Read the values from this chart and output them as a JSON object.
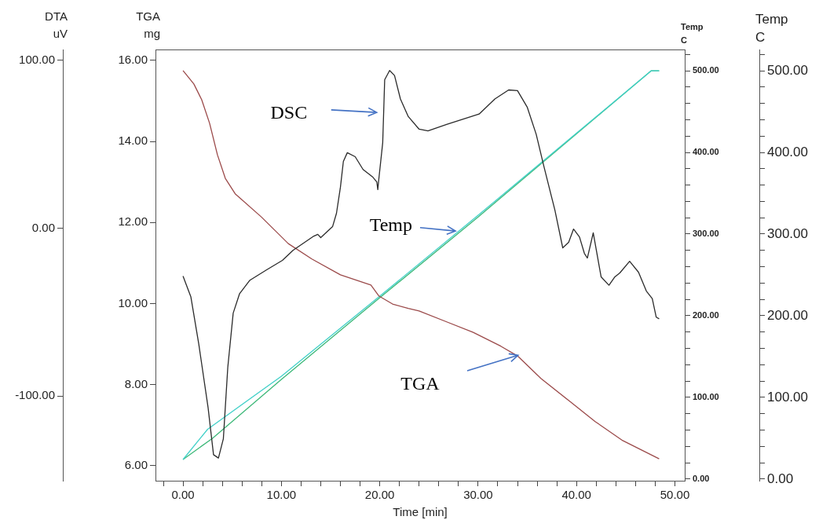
{
  "chart_data": {
    "type": "line",
    "xlabel": "Time [min]",
    "ylabel": "TGA mg",
    "y2label": "Temp C",
    "y3label": "DTA uV",
    "xlim": [
      -2.8,
      51
    ],
    "xticks": [
      {
        "value": -2,
        "label": null
      },
      {
        "value": 0,
        "label": "0.00"
      },
      {
        "value": 2,
        "label": null
      },
      {
        "value": 4,
        "label": null
      },
      {
        "value": 6,
        "label": null
      },
      {
        "value": 8,
        "label": null
      },
      {
        "value": 10,
        "label": "10.00"
      },
      {
        "value": 12,
        "label": null
      },
      {
        "value": 14,
        "label": null
      },
      {
        "value": 16,
        "label": null
      },
      {
        "value": 18,
        "label": null
      },
      {
        "value": 20,
        "label": "20.00"
      },
      {
        "value": 22,
        "label": null
      },
      {
        "value": 24,
        "label": null
      },
      {
        "value": 26,
        "label": null
      },
      {
        "value": 28,
        "label": null
      },
      {
        "value": 30,
        "label": "30.00"
      },
      {
        "value": 32,
        "label": null
      },
      {
        "value": 34,
        "label": null
      },
      {
        "value": 36,
        "label": null
      },
      {
        "value": 38,
        "label": null
      },
      {
        "value": 40,
        "label": "40.00"
      },
      {
        "value": 42,
        "label": null
      },
      {
        "value": 44,
        "label": null
      },
      {
        "value": 46,
        "label": null
      },
      {
        "value": 48,
        "label": null
      },
      {
        "value": 50,
        "label": "50.00"
      }
    ],
    "ylim": [
      5.63,
      16.27
    ],
    "yticks": [
      {
        "value": 6,
        "label": "6.00"
      },
      {
        "value": 8,
        "label": "8.00"
      },
      {
        "value": 10,
        "label": "10.00"
      },
      {
        "value": 12,
        "label": "12.00"
      },
      {
        "value": 14,
        "label": "14.00"
      },
      {
        "value": 16,
        "label": "16.00"
      }
    ],
    "y2lim": [
      -2,
      526
    ],
    "y2ticks": [
      {
        "value": 0,
        "label": "0.00"
      },
      {
        "value": 20,
        "label": null
      },
      {
        "value": 40,
        "label": null
      },
      {
        "value": 60,
        "label": null
      },
      {
        "value": 80,
        "label": null
      },
      {
        "value": 100,
        "label": "100.00"
      },
      {
        "value": 120,
        "label": null
      },
      {
        "value": 140,
        "label": null
      },
      {
        "value": 160,
        "label": null
      },
      {
        "value": 180,
        "label": null
      },
      {
        "value": 200,
        "label": "200.00"
      },
      {
        "value": 220,
        "label": null
      },
      {
        "value": 240,
        "label": null
      },
      {
        "value": 260,
        "label": null
      },
      {
        "value": 280,
        "label": null
      },
      {
        "value": 300,
        "label": "300.00"
      },
      {
        "value": 320,
        "label": null
      },
      {
        "value": 340,
        "label": null
      },
      {
        "value": 360,
        "label": null
      },
      {
        "value": 380,
        "label": null
      },
      {
        "value": 400,
        "label": "400.00"
      },
      {
        "value": 420,
        "label": null
      },
      {
        "value": 440,
        "label": null
      },
      {
        "value": 460,
        "label": null
      },
      {
        "value": 480,
        "label": null
      },
      {
        "value": 500,
        "label": "500.00"
      },
      {
        "value": 520,
        "label": null
      }
    ],
    "y3lim": [
      -150.5,
      106.5
    ],
    "y3ticks": [
      {
        "value": -100,
        "label": "-100.00"
      },
      {
        "value": 0,
        "label": "0.00"
      },
      {
        "value": 100,
        "label": "100.00"
      }
    ],
    "grid": false,
    "legend": false,
    "marker": "none",
    "line_style": "solid",
    "annotations": [
      "DSC",
      {
        "text": "Temp",
        "x": 27.7,
        "y": 11.79
      },
      "TGA"
    ],
    "series": [
      {
        "color": "#2b2b2b",
        "axis": "y3",
        "x": [
          0,
          0.8,
          1.6,
          2.55,
          3.1,
          3.6,
          4.1,
          4.55,
          5.1,
          5.75,
          6.8,
          8.5,
          10.1,
          11.2,
          13.3,
          13.7,
          14.0,
          15.2,
          15.6,
          16.0,
          16.3,
          16.7,
          17.5,
          18.3,
          19.3,
          19.7,
          19.8,
          19.9,
          20.3,
          20.5,
          21.0,
          21.5,
          22.1,
          22.9,
          24.0,
          24.9,
          26.8,
          30.1,
          31.7,
          33.1,
          34.0,
          35.0,
          35.9,
          36.7,
          37.8,
          38.6,
          39.2,
          39.7,
          40.3,
          40.8,
          41.1,
          41.7,
          42.5,
          43.3,
          43.9,
          44.4,
          45.4,
          46.3,
          47.1,
          47.7,
          48.1,
          48.4
        ],
        "values": [
          -28.6,
          -41,
          -69,
          -107,
          -135,
          -137,
          -125.5,
          -83,
          -50.6,
          -39,
          -31,
          -24.8,
          -19.2,
          -13.1,
          -4.7,
          -3.7,
          -5.6,
          0.9,
          8.9,
          24.4,
          39.8,
          45,
          42.6,
          35,
          30.4,
          27.6,
          23,
          29,
          51,
          88.5,
          94,
          91,
          77,
          66.5,
          59,
          58,
          61.8,
          68,
          77,
          82.4,
          82,
          72,
          56,
          36.5,
          10.8,
          -11.7,
          -8.4,
          -0.5,
          -5.2,
          -15,
          -17.8,
          -2.8,
          -29,
          -34,
          -29,
          -26.7,
          -19.7,
          -26.2,
          -37.5,
          -42,
          -53,
          -54
        ]
      },
      {
        "color": "#9b4a4a",
        "x": [
          0,
          1.1,
          1.9,
          2.7,
          3.5,
          4.3,
          5.3,
          8.0,
          10.7,
          13.1,
          16.0,
          19.1,
          19.9,
          21.3,
          22.9,
          24.0,
          26.8,
          29.5,
          32.3,
          34.0,
          36.4,
          39.2,
          41.9,
          44.7,
          48.4
        ],
        "values": [
          15.75,
          15.42,
          15.03,
          14.45,
          13.67,
          13.09,
          12.71,
          12.13,
          11.48,
          11.1,
          10.71,
          10.46,
          10.19,
          9.99,
          9.88,
          9.82,
          9.55,
          9.29,
          8.95,
          8.71,
          8.15,
          7.61,
          7.09,
          6.62,
          6.17
        ]
      },
      {
        "color": "#40d0c8",
        "axis": "y2",
        "x": [
          0,
          2.5,
          10,
          20,
          30,
          47.6,
          48.4
        ],
        "values": [
          24,
          61,
          126,
          224,
          323,
          500,
          500
        ]
      },
      {
        "color": "#3cb878",
        "axis": "y2",
        "x": [
          0,
          3,
          10,
          20,
          30,
          47.6,
          48.4
        ],
        "values": [
          24,
          50,
          122,
          222,
          321,
          500,
          500
        ]
      }
    ]
  }
}
